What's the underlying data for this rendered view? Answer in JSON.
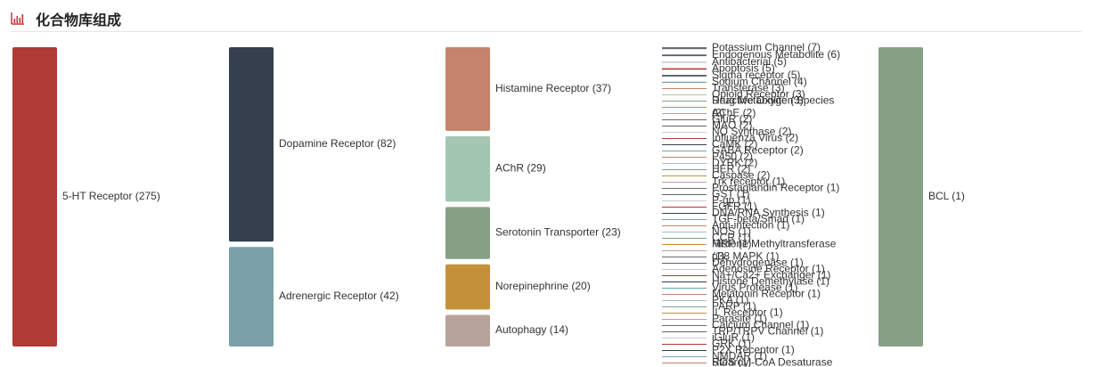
{
  "header": {
    "title": "化合物库组成",
    "icon": "bar-chart-icon",
    "icon_color": "#c23531"
  },
  "chart_data": {
    "type": "bar",
    "title": "化合物库组成",
    "categories": [
      "5-HT Receptor",
      "Dopamine Receptor",
      "Adrenergic Receptor",
      "Histamine Receptor",
      "AChR",
      "Serotonin Transporter",
      "Norepinephrine",
      "Autophagy",
      "Potassium Channel",
      "Endogenous Metabolite",
      "Antibacterial",
      "Apoptosis",
      "Sigma receptor",
      "Sodium Channel",
      "Transferase",
      "Opioid Receptor",
      "Drug Metabolite",
      "Reactive Oxygen Species",
      "AChE",
      "GluR",
      "MAO",
      "NO Synthase",
      "Influenza Virus",
      "CaMK",
      "GABA Receptor",
      "P450",
      "DYRK",
      "HER",
      "Caspase",
      "Trk receptor",
      "Prostaglandin Receptor",
      "GST",
      "P-gp",
      "FGFR",
      "DNA/RNA Synthesis",
      "TGF-beta/Smad",
      "Anti-infection",
      "NOS",
      "CCR",
      "MRP",
      "Histone Methyltransferase",
      "p38 MAPK",
      "Dehydrogenase",
      "Adenosine Receptor",
      "Na+/Ca2+ Exchanger",
      "Histone Demethylase",
      "Virus Protease",
      "Melatonin Receptor",
      "PKA",
      "PARP",
      "IL Receptor",
      "Parasite",
      "Calcium Channel",
      "TRP/TRPV Channel",
      "iGluR",
      "GRK",
      "P2X Receptor",
      "NMDAR",
      "ROS",
      "Stearoyl-CoA Desaturase (SCD)",
      "BCL"
    ],
    "values": [
      275,
      82,
      42,
      37,
      29,
      23,
      20,
      14,
      7,
      6,
      5,
      5,
      5,
      4,
      3,
      3,
      3,
      2,
      2,
      2,
      2,
      2,
      2,
      2,
      2,
      2,
      2,
      2,
      2,
      1,
      1,
      1,
      1,
      1,
      1,
      1,
      1,
      1,
      1,
      1,
      1,
      1,
      1,
      1,
      1,
      1,
      1,
      1,
      1,
      1,
      1,
      1,
      1,
      1,
      1,
      1,
      1,
      1,
      1,
      1,
      1
    ],
    "colors": [
      "#b03a35",
      "#353f4d",
      "#7aa0a8",
      "#c4836a",
      "#a3c6b2",
      "#86a085",
      "#c4913a",
      "#b8a29c",
      "#6c6d70",
      "#5f656d",
      "#c7cbcf",
      "#b03a35",
      "#353f4d",
      "#7aa0a8",
      "#c4836a",
      "#a3c6b2",
      "#86a085",
      "#c4913a",
      "#b8a29c",
      "#6c6d70",
      "#5f656d",
      "#c7cbcf",
      "#b03a35",
      "#353f4d",
      "#7aa0a8",
      "#c4836a",
      "#a3c6b2",
      "#86a085",
      "#c4913a",
      "#b8a29c",
      "#6c6d70",
      "#5f656d",
      "#c7cbcf",
      "#b03a35",
      "#353f4d",
      "#7aa0a8",
      "#c4836a",
      "#a3c6b2",
      "#86a085",
      "#c4913a",
      "#b8a29c",
      "#6c6d70",
      "#5f656d",
      "#c7cbcf",
      "#b03a35",
      "#353f4d",
      "#7aa0a8",
      "#c4836a",
      "#a3c6b2",
      "#86a085",
      "#c4913a",
      "#b8a29c",
      "#6c6d70",
      "#5f656d",
      "#c7cbcf",
      "#b03a35",
      "#353f4d",
      "#7aa0a8",
      "#c4836a",
      "#a3c6b2",
      "#86a085"
    ],
    "label_format": "{name} ({value})"
  }
}
